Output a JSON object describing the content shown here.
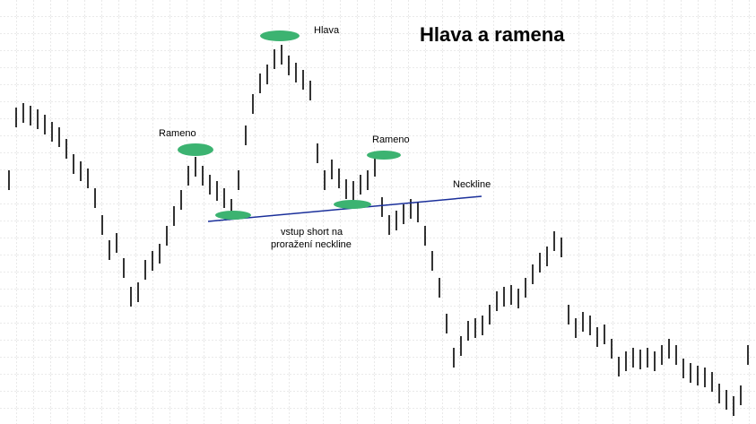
{
  "chart_data": {
    "type": "range-bar",
    "title": "Hlava a ramena",
    "annotations": [
      "Hlava",
      "Rameno",
      "Rameno",
      "Neckline",
      "vstup short na",
      "proražení neckline"
    ],
    "color": "#000000",
    "ylim": [
      0,
      473
    ],
    "high": [
      283,
      353,
      358,
      355,
      351,
      345,
      337,
      331,
      318,
      301,
      293,
      285,
      263,
      233,
      205,
      213,
      185,
      153,
      158,
      183,
      193,
      201,
      221,
      243,
      261,
      288,
      298,
      288,
      278,
      271,
      263,
      251,
      283,
      333,
      368,
      391,
      401,
      418,
      423,
      411,
      403,
      395,
      383,
      313,
      283,
      295,
      285,
      273,
      271,
      278,
      283,
      298,
      253,
      233,
      238,
      245,
      251,
      247,
      221,
      193,
      163,
      123,
      85,
      98,
      115,
      118,
      121,
      133,
      148,
      153,
      155,
      151,
      163,
      178,
      191,
      198,
      215,
      208,
      133,
      118,
      125,
      121,
      108,
      111,
      95,
      75,
      81,
      85,
      83,
      85,
      81,
      88,
      95,
      88,
      73,
      68,
      65,
      63,
      58,
      45,
      38,
      31,
      43,
      88
    ],
    "low": [
      261,
      331,
      336,
      333,
      329,
      323,
      315,
      309,
      296,
      279,
      271,
      263,
      241,
      211,
      183,
      191,
      163,
      131,
      136,
      161,
      171,
      179,
      199,
      221,
      239,
      266,
      276,
      266,
      256,
      249,
      241,
      229,
      261,
      311,
      346,
      369,
      379,
      396,
      401,
      389,
      381,
      373,
      361,
      291,
      261,
      273,
      263,
      251,
      249,
      256,
      261,
      276,
      231,
      211,
      216,
      223,
      229,
      225,
      199,
      171,
      141,
      101,
      63,
      76,
      93,
      96,
      99,
      111,
      126,
      131,
      133,
      129,
      141,
      156,
      169,
      176,
      193,
      186,
      111,
      96,
      103,
      99,
      86,
      89,
      73,
      53,
      59,
      63,
      61,
      63,
      59,
      66,
      73,
      66,
      51,
      46,
      43,
      41,
      36,
      23,
      16,
      9,
      21,
      66
    ]
  }
}
